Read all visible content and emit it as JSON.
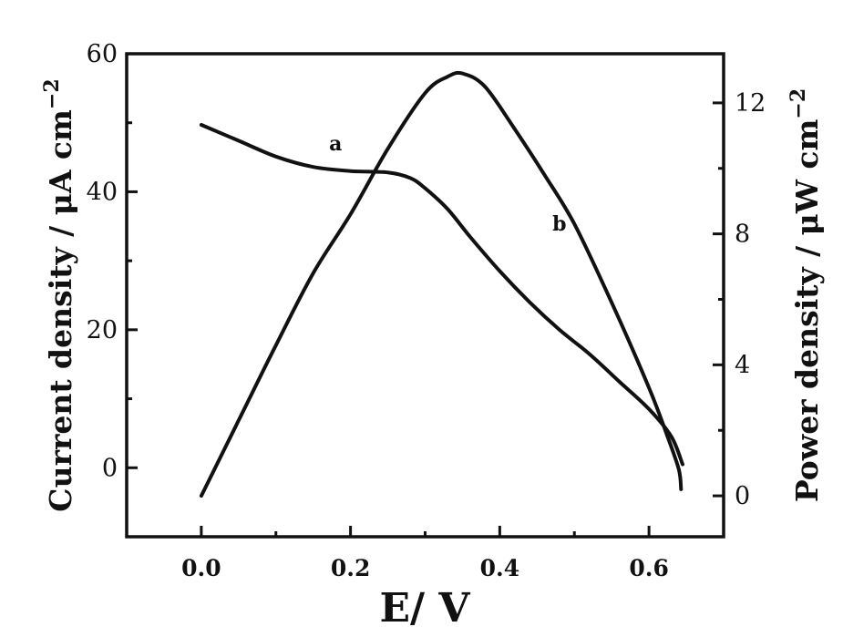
{
  "chart_data": {
    "type": "line",
    "title": "",
    "xlabel": "E/ V",
    "ylabel_left": "Current density / μA cm",
    "ylabel_left_sup": "−2",
    "ylabel_right": "Power density / μW cm",
    "ylabel_right_sup": "−2",
    "xlim": [
      -0.1,
      0.7
    ],
    "ylim_left": [
      -10,
      60
    ],
    "ylim_right": [
      -1.25,
      13.5
    ],
    "x_ticks": [
      0.0,
      0.2,
      0.4,
      0.6
    ],
    "x_tick_labels": [
      "0.0",
      "0.2",
      "0.4",
      "0.6"
    ],
    "y_left_ticks": [
      0,
      20,
      40,
      60
    ],
    "y_left_tick_labels": [
      "0",
      "20",
      "40",
      "60"
    ],
    "y_right_ticks": [
      0,
      4,
      8,
      12
    ],
    "y_right_tick_labels": [
      "0",
      "4",
      "8",
      "12"
    ],
    "grid": false,
    "series": [
      {
        "name": "a",
        "axis": "left",
        "label_pos": {
          "x": 0.18,
          "y": 46
        },
        "points": [
          [
            0.0,
            49.7
          ],
          [
            0.05,
            47.4
          ],
          [
            0.1,
            45.1
          ],
          [
            0.15,
            43.6
          ],
          [
            0.2,
            43.0
          ],
          [
            0.25,
            42.8
          ],
          [
            0.28,
            42.0
          ],
          [
            0.3,
            40.5
          ],
          [
            0.33,
            37.5
          ],
          [
            0.36,
            33.5
          ],
          [
            0.4,
            28.5
          ],
          [
            0.44,
            24.0
          ],
          [
            0.48,
            20.0
          ],
          [
            0.52,
            16.5
          ],
          [
            0.56,
            12.5
          ],
          [
            0.6,
            8.5
          ],
          [
            0.63,
            4.5
          ],
          [
            0.645,
            0.5
          ]
        ]
      },
      {
        "name": "b",
        "axis": "right",
        "label_pos": {
          "x": 0.48,
          "y": 8.1
        },
        "points": [
          [
            0.0,
            0.0
          ],
          [
            0.05,
            2.3
          ],
          [
            0.1,
            4.6
          ],
          [
            0.15,
            6.8
          ],
          [
            0.2,
            8.6
          ],
          [
            0.25,
            10.6
          ],
          [
            0.3,
            12.3
          ],
          [
            0.33,
            12.8
          ],
          [
            0.35,
            12.9
          ],
          [
            0.38,
            12.5
          ],
          [
            0.42,
            11.2
          ],
          [
            0.46,
            9.8
          ],
          [
            0.5,
            8.3
          ],
          [
            0.55,
            5.9
          ],
          [
            0.6,
            3.3
          ],
          [
            0.625,
            1.8
          ],
          [
            0.64,
            0.8
          ],
          [
            0.643,
            0.2
          ]
        ]
      }
    ]
  }
}
